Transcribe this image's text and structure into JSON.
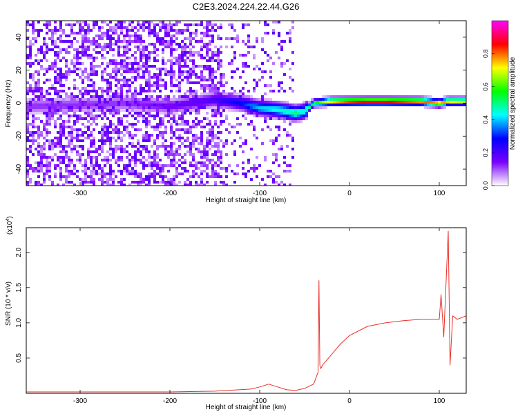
{
  "title": "C2E3.2024.224.22.44.G26",
  "chart_data": [
    {
      "type": "heatmap",
      "xlabel": "Height of straight line (km)",
      "ylabel": "Frequency (Hz)",
      "xlim": [
        -360,
        130
      ],
      "ylim": [
        -50,
        50
      ],
      "xticks": [
        -300,
        -200,
        -100,
        0,
        100
      ],
      "yticks": [
        -40,
        -20,
        0,
        20,
        40
      ],
      "colorbar": {
        "label": "Normalized spectral amplitude",
        "range": [
          0.0,
          1.0
        ],
        "ticks": [
          "0.0",
          "0.2",
          "0.4",
          "0.6",
          "0.8"
        ],
        "colormap": [
          "#ffffff",
          "#7a00ff",
          "#0000ff",
          "#00ffff",
          "#00ff00",
          "#ffff00",
          "#ff0000",
          "#ff00ff"
        ]
      },
      "ridge": {
        "x": [
          -360,
          -300,
          -250,
          -200,
          -150,
          -120,
          -100,
          -80,
          -60,
          -50,
          -40,
          -20,
          0,
          20,
          40,
          60,
          80,
          100,
          110,
          130
        ],
        "frequency": [
          -2,
          -1,
          0,
          -2,
          2,
          0,
          -3,
          -4,
          -6,
          -5,
          0,
          1,
          1,
          1,
          1,
          1,
          1,
          0,
          1,
          1
        ],
        "amplitude": [
          0.12,
          0.12,
          0.12,
          0.15,
          0.2,
          0.3,
          0.4,
          0.45,
          0.5,
          0.45,
          0.55,
          0.75,
          0.85,
          0.9,
          0.9,
          0.85,
          0.8,
          0.8,
          0.75,
          0.7
        ]
      }
    },
    {
      "type": "line",
      "xlabel": "Height of straight line (km)",
      "ylabel": "SNR (10 * v/v)",
      "y_multiplier": "(x10",
      "y_multiplier_exp": "4",
      "y_multiplier_close": ")",
      "xlim": [
        -360,
        130
      ],
      "ylim": [
        0.0,
        2.35
      ],
      "xticks": [
        -300,
        -200,
        -100,
        0,
        100
      ],
      "yticks": [
        "0.5",
        "1.0",
        "1.5",
        "2.0"
      ],
      "color": "#e8302a",
      "series": [
        {
          "x": [
            -360,
            -300,
            -250,
            -200,
            -150,
            -110,
            -100,
            -90,
            -80,
            -70,
            -60,
            -50,
            -40,
            -35,
            -34,
            -33,
            -32,
            -30,
            -20,
            -10,
            0,
            20,
            40,
            60,
            80,
            100,
            102,
            105,
            108,
            110,
            112,
            115,
            120,
            130
          ],
          "y": [
            0.02,
            0.02,
            0.02,
            0.02,
            0.03,
            0.06,
            0.09,
            0.13,
            0.09,
            0.05,
            0.04,
            0.07,
            0.13,
            0.3,
            1.6,
            0.4,
            0.35,
            0.4,
            0.55,
            0.7,
            0.82,
            0.95,
            1.0,
            1.03,
            1.05,
            1.05,
            1.4,
            0.8,
            1.7,
            2.3,
            0.4,
            1.1,
            1.05,
            1.1
          ]
        }
      ]
    }
  ]
}
